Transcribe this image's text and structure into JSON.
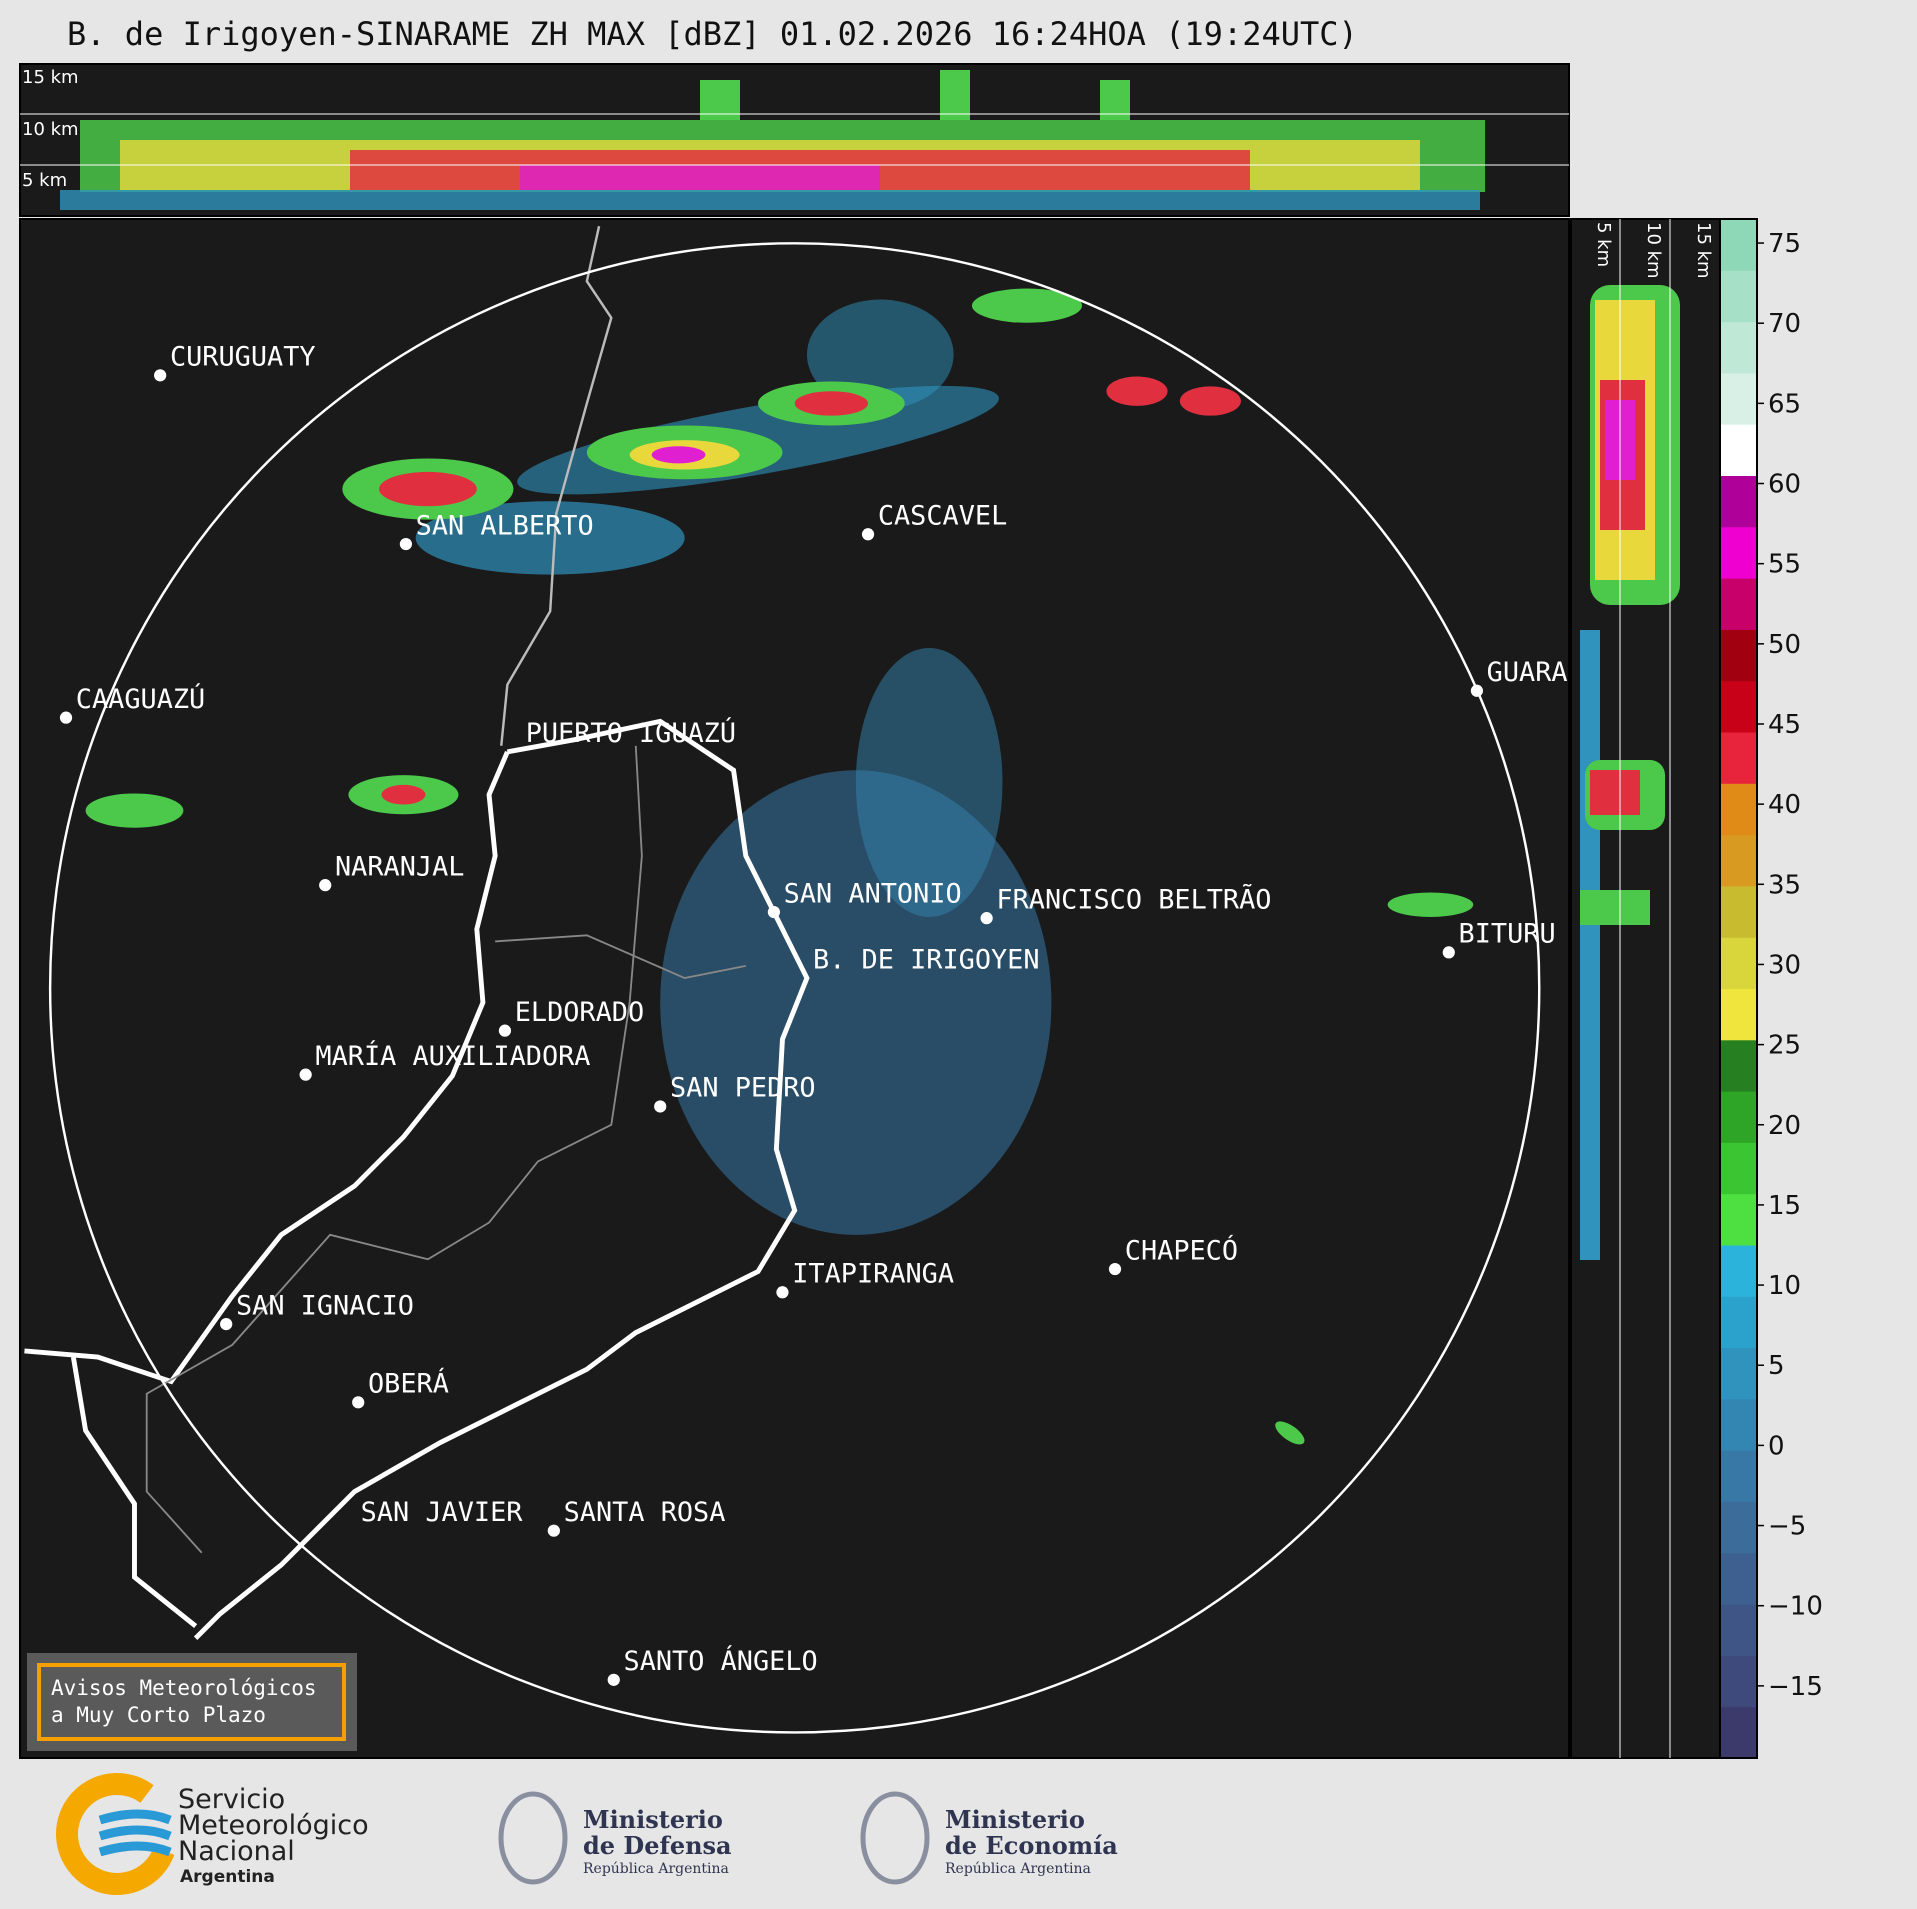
{
  "header": {
    "title": "B. de Irigoyen-SINARAME ZH MAX [dBZ] 01.02.2026 16:24HOA (19:24UTC)"
  },
  "top_panel": {
    "labels": [
      "15 km",
      "10 km",
      "5 km"
    ]
  },
  "side_panel": {
    "labels": [
      "5 km",
      "10 km",
      "15 km"
    ]
  },
  "map": {
    "cities": [
      "CURUGUATY",
      "SAN ALBERTO",
      "CASCAVEL",
      "CAAGUAZÚ",
      "GUARA",
      "PUERTO IGUAZÚ",
      "NARANJAL",
      "SAN ANTONIO",
      "FRANCISCO BELTRÃO",
      "B. DE IRIGOYEN",
      "BITURU",
      "ELDORADO",
      "MARÍA AUXILIADORA",
      "SAN PEDRO",
      "ITAPIRANGA",
      "CHAPECÓ",
      "SAN IGNACIO",
      "OBERÁ",
      "SAN JAVIER",
      "SANTA ROSA",
      "SANTO ÁNGELO"
    ]
  },
  "colorbar": {
    "lim": [
      -19.5,
      76.5
    ],
    "ticks": [
      {
        "value": -15,
        "label": "−15"
      },
      {
        "value": -10,
        "label": "−10"
      },
      {
        "value": -5,
        "label": "−5"
      },
      0,
      5,
      10,
      15,
      20,
      25,
      30,
      35,
      40,
      45,
      50,
      55,
      60,
      65,
      70,
      75
    ],
    "colors": [
      "#3c3a6a",
      "#3f4a7c",
      "#3e5585",
      "#3d6090",
      "#3b6c9a",
      "#3778a6",
      "#3385b2",
      "#2f93be",
      "#2aa2cc",
      "#2cb3dc",
      "#4de040",
      "#3cc532",
      "#2fa528",
      "#267f20",
      "#f0e53c",
      "#d8d63a",
      "#c8bb30",
      "#d89a20",
      "#e08a18",
      "#e8243c",
      "#c80018",
      "#a00010",
      "#c8006a",
      "#f000d0",
      "#b0009a",
      "#ffffff",
      "#d8f0e6",
      "#bfe8d6",
      "#a6e0c6",
      "#8ed8b8"
    ]
  },
  "notice": {
    "lines": [
      "Avisos Meteorológicos",
      "a Muy Corto Plazo"
    ]
  },
  "footer": {
    "smn": [
      "Servicio",
      "Meteorológico",
      "Nacional",
      "Argentina"
    ],
    "defensa": [
      "Ministerio",
      "de Defensa",
      "República Argentina"
    ],
    "economia": [
      "Ministerio",
      "de Economía",
      "República Argentina"
    ]
  }
}
